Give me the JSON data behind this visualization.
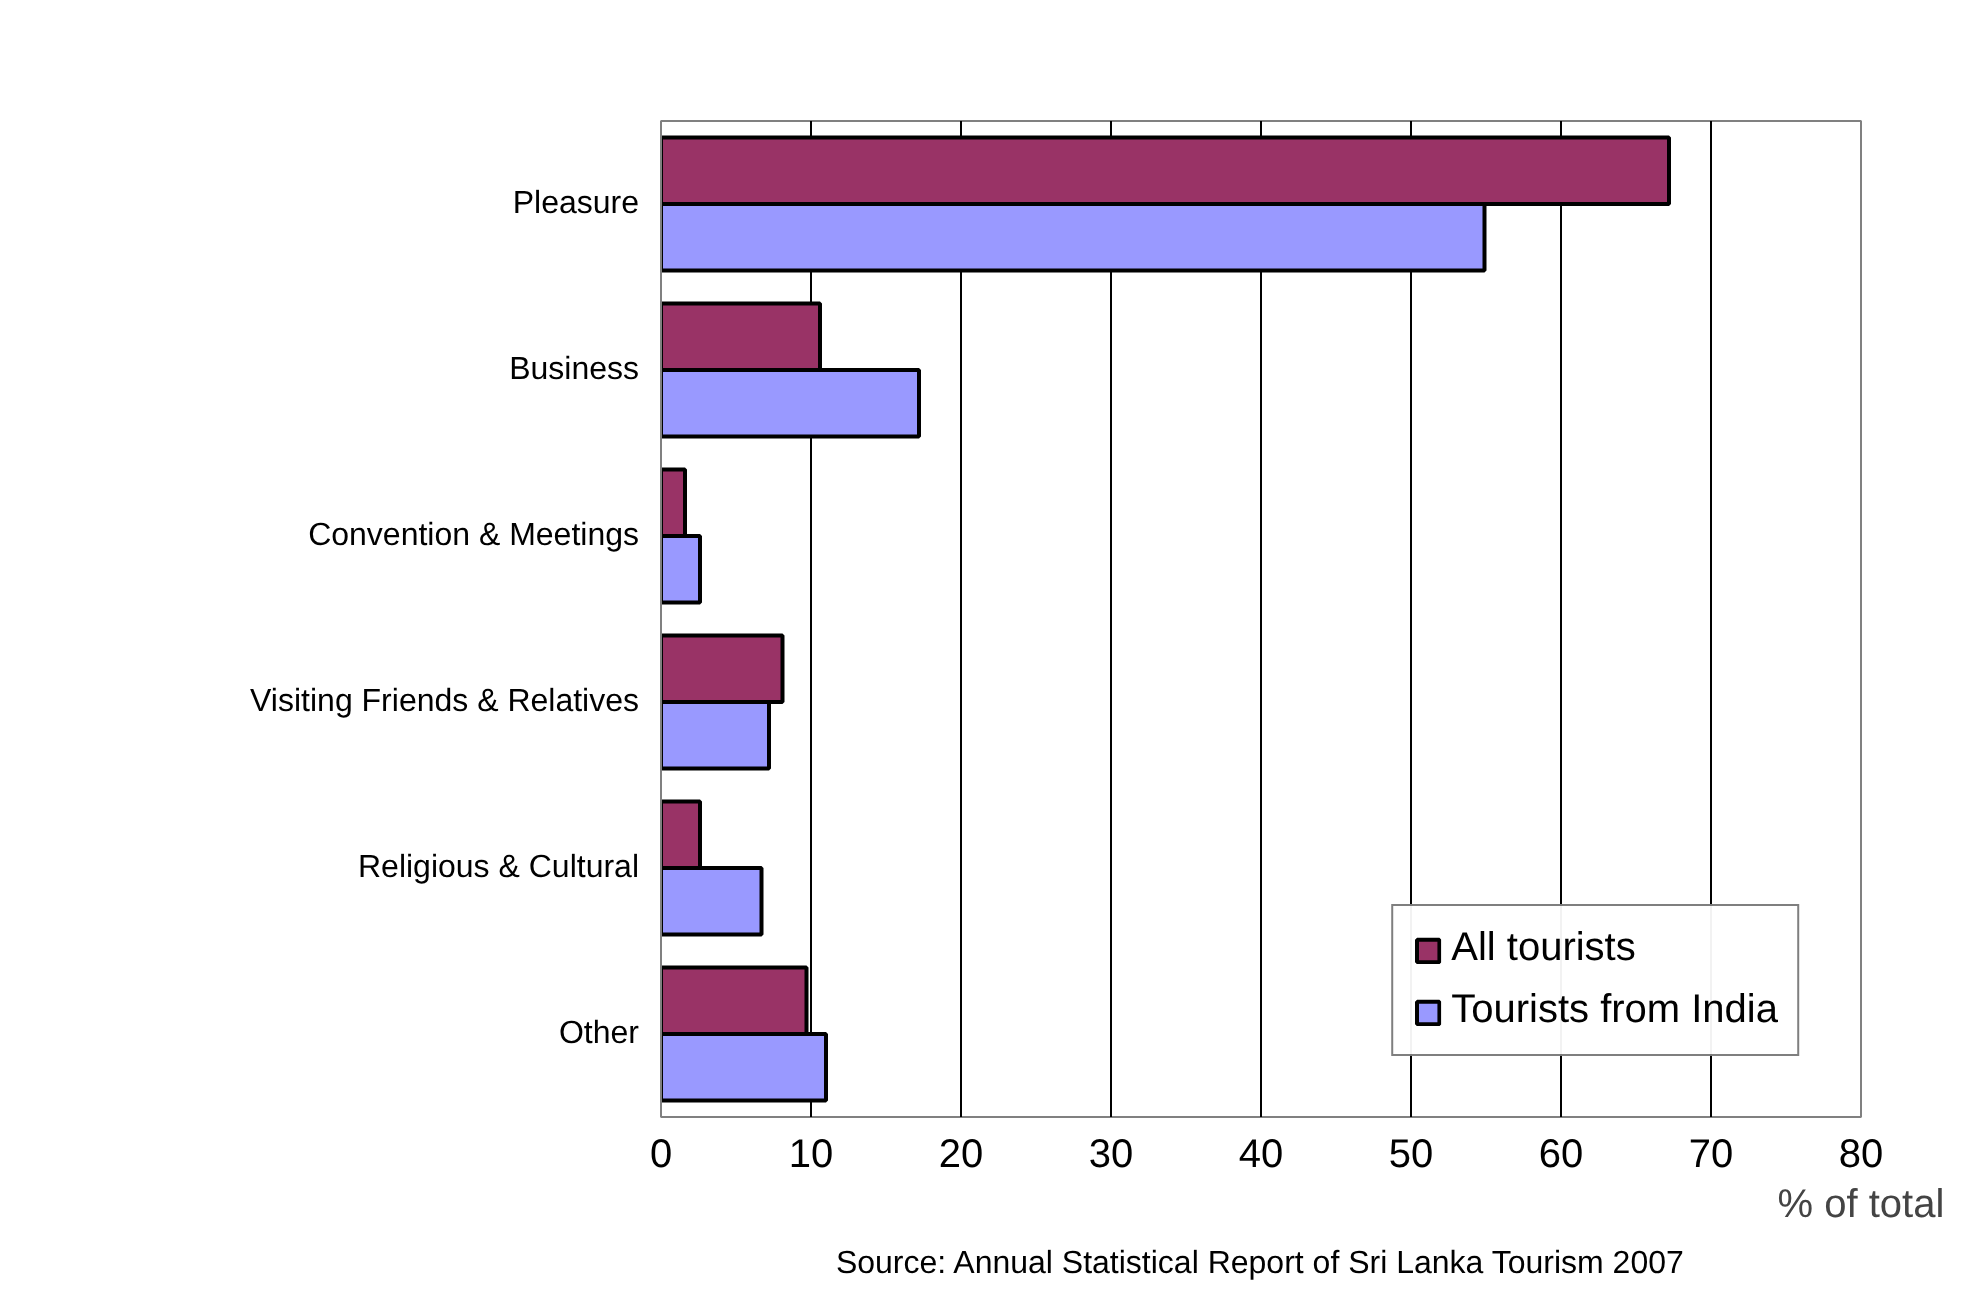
{
  "chart_data": {
    "type": "bar",
    "orientation": "horizontal",
    "xlabel": "% of total",
    "categories": [
      "Pleasure",
      "Business",
      "Convention & Meetings",
      "Visiting Friends & Relatives",
      "Religious & Cultural",
      "Other"
    ],
    "series": [
      {
        "name": "All tourists",
        "color": "#993366",
        "values": [
          67.2,
          10.6,
          1.6,
          8.1,
          2.6,
          9.7
        ]
      },
      {
        "name": "Tourists from India",
        "color": "#9999ff",
        "values": [
          54.9,
          17.2,
          2.6,
          7.2,
          6.7,
          11.0
        ]
      }
    ],
    "xlim": [
      0,
      80
    ],
    "xticks": [
      0,
      10,
      20,
      30,
      40,
      50,
      60,
      70,
      80
    ],
    "grid": "x",
    "legend": "bottom right",
    "annotations": [
      "Source: Annual Statistical Report of Sri Lanka Tourism 2007"
    ]
  }
}
